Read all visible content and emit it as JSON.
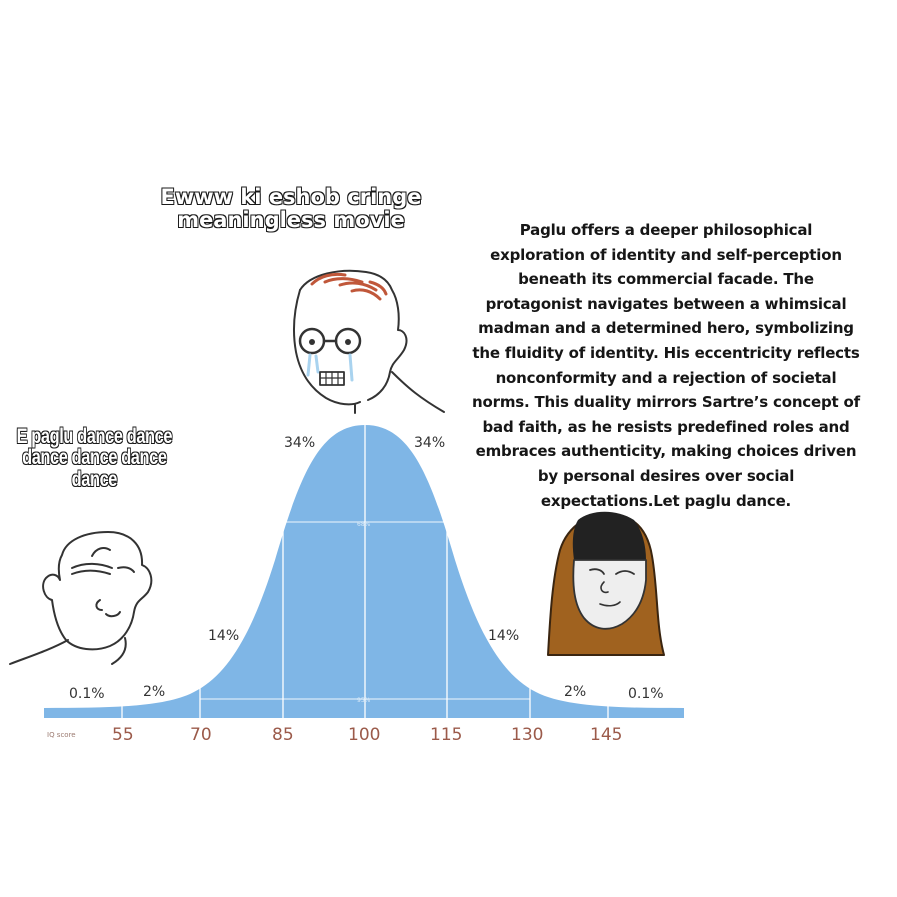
{
  "captions": {
    "left": "E paglu dance dance dance dance dance dance",
    "middle": "Ewww ki eshob cringe meaningless movie"
  },
  "essay": {
    "lines": [
      "Paglu  offers a deeper philosophical",
      "exploration of identity and self-perception",
      "beneath its commercial facade. The",
      "protagonist navigates between a whimsical",
      "madman and a determined hero, symbolizing",
      "the fluidity of identity. His eccentricity reflects",
      "nonconformity and a rejection of societal",
      "norms. This duality mirrors  Sartre’s concept of",
      "bad faith, as he resists predefined roles and",
      "embraces authenticity, making choices driven",
      "by personal desires over social",
      "expectations.Let paglu dance."
    ]
  },
  "chart": {
    "percent_labels": [
      "0.1%",
      "2%",
      "14%",
      "34%",
      "34%",
      "14%",
      "2%",
      "0.1%"
    ],
    "inner_labels": [
      "68%",
      "95%"
    ],
    "axis_title": "IQ score",
    "ticks": [
      "55",
      "70",
      "85",
      "100",
      "115",
      "130",
      "145"
    ],
    "fill_color": "#7fb6e6",
    "line_color": "#ffffff",
    "tick_color": "#9b5a4a"
  },
  "characters": [
    {
      "name": "smug-wojak",
      "colors": {
        "outline": "#333333"
      }
    },
    {
      "name": "crying-nerd-wojak",
      "colors": {
        "outline": "#333333",
        "hair": "#c0573a",
        "tears": "#a9d3ef"
      }
    },
    {
      "name": "hooded-monk-wojak",
      "colors": {
        "outline": "#333333",
        "hood": "#a0621f",
        "hair": "#222222"
      }
    }
  ]
}
